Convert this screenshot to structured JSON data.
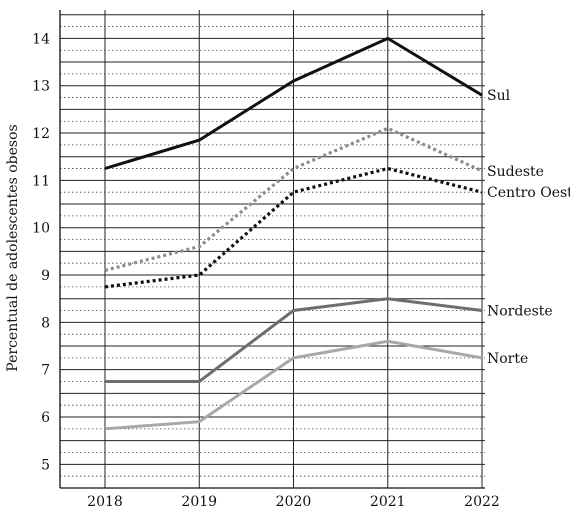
{
  "chart_data": {
    "type": "line",
    "ylabel": "Percentual de adolescentes obesos",
    "xlabel": "",
    "x": [
      2018,
      2019,
      2020,
      2021,
      2022
    ],
    "x_tick_labels": [
      "2018",
      "2019",
      "2020",
      "2021",
      "2022"
    ],
    "ylim": [
      4.5,
      14.6
    ],
    "y_ticks": [
      5,
      6,
      7,
      8,
      9,
      10,
      11,
      12,
      13,
      14
    ],
    "y_tick_labels": [
      "5",
      "6",
      "7",
      "8",
      "9",
      "10",
      "11",
      "12",
      "13",
      "14"
    ],
    "grid": true,
    "legend": "inline-right",
    "series": [
      {
        "name": "Sul",
        "values": [
          11.25,
          11.85,
          13.1,
          14.0,
          12.8
        ],
        "color": "#111111",
        "dash": "solid"
      },
      {
        "name": "Sudeste",
        "values": [
          9.1,
          9.6,
          11.25,
          12.1,
          11.2
        ],
        "color": "#8c8c8c",
        "dash": "dotted"
      },
      {
        "name": "Centro Oeste",
        "values": [
          8.75,
          9.0,
          10.75,
          11.25,
          10.75
        ],
        "color": "#111111",
        "dash": "dotted"
      },
      {
        "name": "Nordeste",
        "values": [
          6.75,
          6.75,
          8.25,
          8.5,
          8.25
        ],
        "color": "#6e6e6e",
        "dash": "solid"
      },
      {
        "name": "Norte",
        "values": [
          5.75,
          5.9,
          7.25,
          7.6,
          7.25
        ],
        "color": "#a8a8a8",
        "dash": "solid"
      }
    ]
  }
}
